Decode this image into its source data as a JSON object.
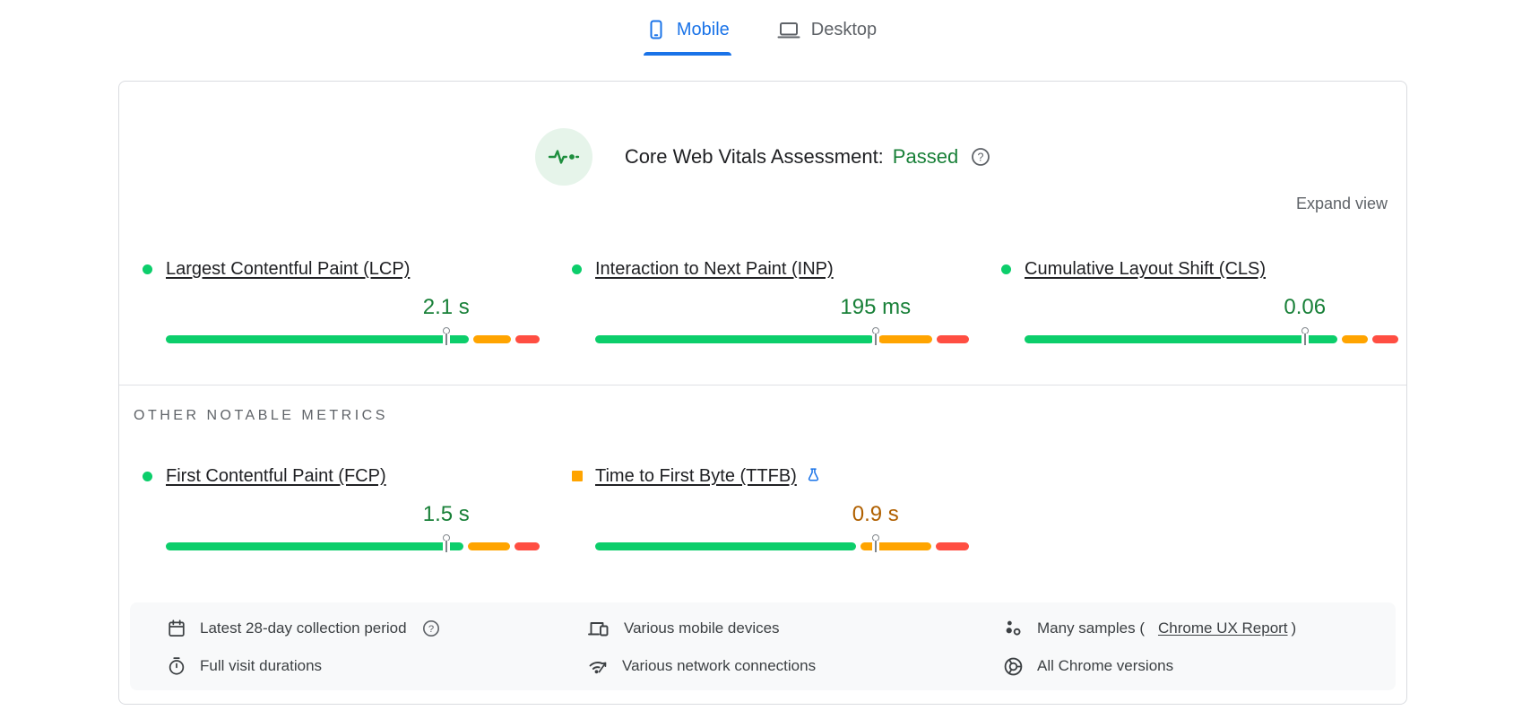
{
  "tabs": [
    {
      "label": "Mobile",
      "icon": "phone-icon",
      "active": true
    },
    {
      "label": "Desktop",
      "icon": "laptop-icon",
      "active": false
    }
  ],
  "header": {
    "title": "Core Web Vitals Assessment:",
    "status": "Passed",
    "expand_label": "Expand view"
  },
  "sections": {
    "other_metrics_title": "OTHER NOTABLE METRICS"
  },
  "metrics": {
    "core": [
      {
        "label": "Largest Contentful Paint (LCP)",
        "value": "2.1 s",
        "status": "good",
        "experimental": false,
        "p75_marker_pct": 75,
        "distribution": {
          "good_pct": 81,
          "ni_pct": 10,
          "poor_pct": 6.5
        }
      },
      {
        "label": "Interaction to Next Paint (INP)",
        "value": "195 ms",
        "status": "good",
        "experimental": false,
        "p75_marker_pct": 75,
        "distribution": {
          "good_pct": 73,
          "ni_pct": 14,
          "poor_pct": 8.5
        }
      },
      {
        "label": "Cumulative Layout Shift (CLS)",
        "value": "0.06",
        "status": "good",
        "experimental": false,
        "p75_marker_pct": 75,
        "distribution": {
          "good_pct": 84,
          "ni_pct": 7,
          "poor_pct": 7
        }
      }
    ],
    "other": [
      {
        "label": "First Contentful Paint (FCP)",
        "value": "1.5 s",
        "status": "good",
        "experimental": false,
        "p75_marker_pct": 75,
        "distribution": {
          "good_pct": 78,
          "ni_pct": 11,
          "poor_pct": 6.5
        }
      },
      {
        "label": "Time to First Byte (TTFB)",
        "value": "0.9 s",
        "status": "needs-improvement",
        "experimental": true,
        "p75_marker_pct": 75,
        "distribution": {
          "good_pct": 70.5,
          "ni_pct": 19,
          "poor_pct": 9
        }
      }
    ]
  },
  "footer": {
    "items": [
      {
        "icon": "calendar-icon",
        "text": "Latest 28-day collection period",
        "help": true
      },
      {
        "icon": "devices-icon",
        "text": "Various mobile devices"
      },
      {
        "icon": "samples-icon",
        "text": "Many samples (",
        "link_text": "Chrome UX Report",
        "suffix": ")"
      },
      {
        "icon": "stopwatch-icon",
        "text": "Full visit durations"
      },
      {
        "icon": "network-icon",
        "text": "Various network connections"
      },
      {
        "icon": "chrome-icon",
        "text": "All Chrome versions"
      }
    ]
  },
  "colors": {
    "blue": "#1a73e8",
    "good_green": "#0cce6b",
    "ni_orange": "#ffa400",
    "poor_red": "#ff4e42",
    "green_text": "#188038",
    "orange_text": "#b06000",
    "gray_text": "#5f6368",
    "dark_text": "#202124",
    "border": "#dadce0",
    "footer_bg": "#f8f9fa",
    "pulse_bg": "#e6f4ea",
    "pulse_green": "#1e8e3e"
  }
}
